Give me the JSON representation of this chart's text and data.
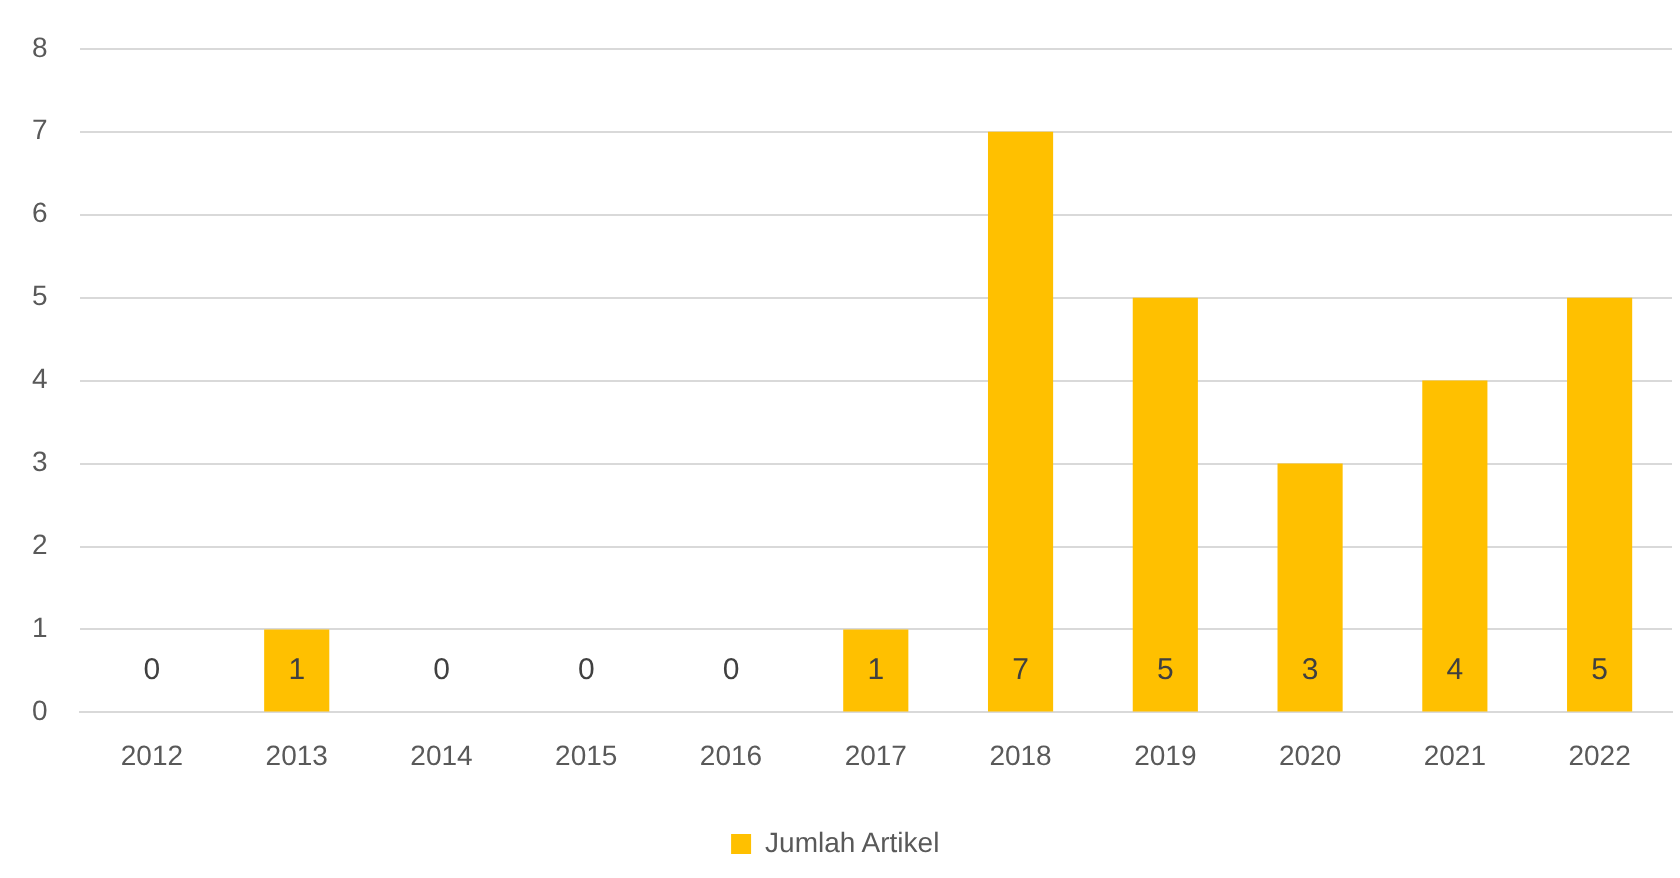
{
  "chart_data": {
    "type": "bar",
    "categories": [
      "2012",
      "2013",
      "2014",
      "2015",
      "2016",
      "2017",
      "2018",
      "2019",
      "2020",
      "2021",
      "2022"
    ],
    "series": [
      {
        "name": "Jumlah Artikel",
        "color": "#ffc000",
        "values": [
          0,
          1,
          0,
          0,
          0,
          1,
          7,
          5,
          3,
          4,
          5
        ]
      }
    ],
    "ylim": [
      0,
      8
    ],
    "yticks": [
      0,
      1,
      2,
      3,
      4,
      5,
      6,
      7,
      8
    ],
    "grid": "y",
    "legend": "bottom",
    "data_labels": true
  }
}
